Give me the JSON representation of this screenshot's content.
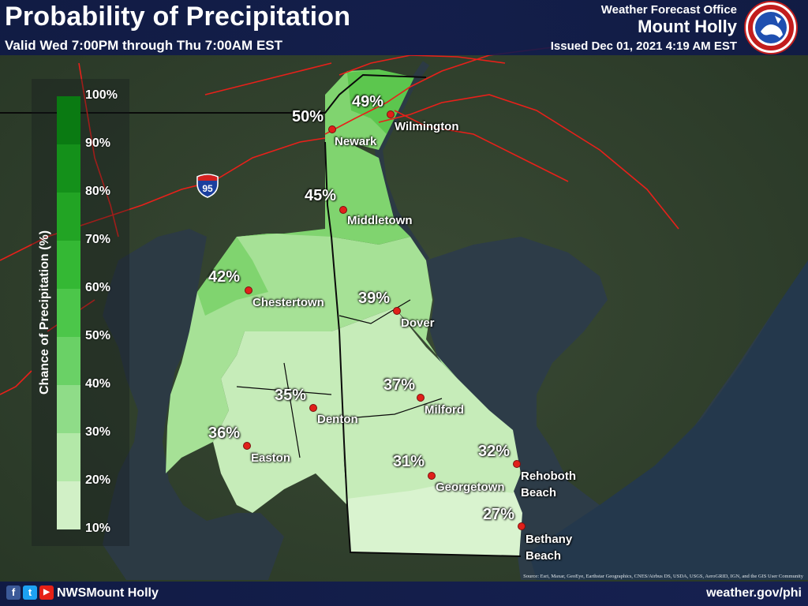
{
  "header": {
    "title": "Probability of Precipitation",
    "valid": "Valid Wed 7:00PM through Thu 7:00AM EST",
    "office_label": "Weather Forecast Office",
    "office_name": "Mount Holly",
    "issued": "Issued Dec 01, 2021 4:19 AM EST",
    "seal_icon": "national-weather-service-seal-icon"
  },
  "legend": {
    "title": "Chance of Precipitation (%)",
    "ticks": [
      "100%",
      "90%",
      "80%",
      "70%",
      "60%",
      "50%",
      "40%",
      "30%",
      "20%",
      "10%"
    ],
    "colors": [
      "#0a7a12",
      "#14901a",
      "#22a424",
      "#34b834",
      "#4cc64a",
      "#6ad166",
      "#8fdc88",
      "#b3e8a8",
      "#d1f0c6",
      "#e7f8e0"
    ]
  },
  "highway_shield": "95",
  "cities": [
    {
      "name": "Wilmington",
      "value": "49%"
    },
    {
      "name": "Newark",
      "value": "50%"
    },
    {
      "name": "Middletown",
      "value": "45%"
    },
    {
      "name": "Chestertown",
      "value": "42%"
    },
    {
      "name": "Dover",
      "value": "39%"
    },
    {
      "name": "Milford",
      "value": "37%"
    },
    {
      "name": "Denton",
      "value": "35%"
    },
    {
      "name": "Easton",
      "value": "36%"
    },
    {
      "name": "Rehoboth\nBeach",
      "value": "32%"
    },
    {
      "name": "Georgetown",
      "value": "31%"
    },
    {
      "name": "Bethany\nBeach",
      "value": "27%"
    }
  ],
  "footer": {
    "handle": "NWSMount Holly",
    "url": "weather.gov/phi",
    "social_icons": [
      "facebook-icon",
      "twitter-icon",
      "youtube-icon"
    ],
    "credits": "Source: Esri, Maxar, GeoEye, Earthstar Geographics, CNES/Airbus DS, USDA, USGS, AeroGRID, IGN, and the GIS User Community"
  },
  "colors": {
    "header_bg": "#0f1946",
    "dot": "#e0201a",
    "road": "#e8201a"
  }
}
